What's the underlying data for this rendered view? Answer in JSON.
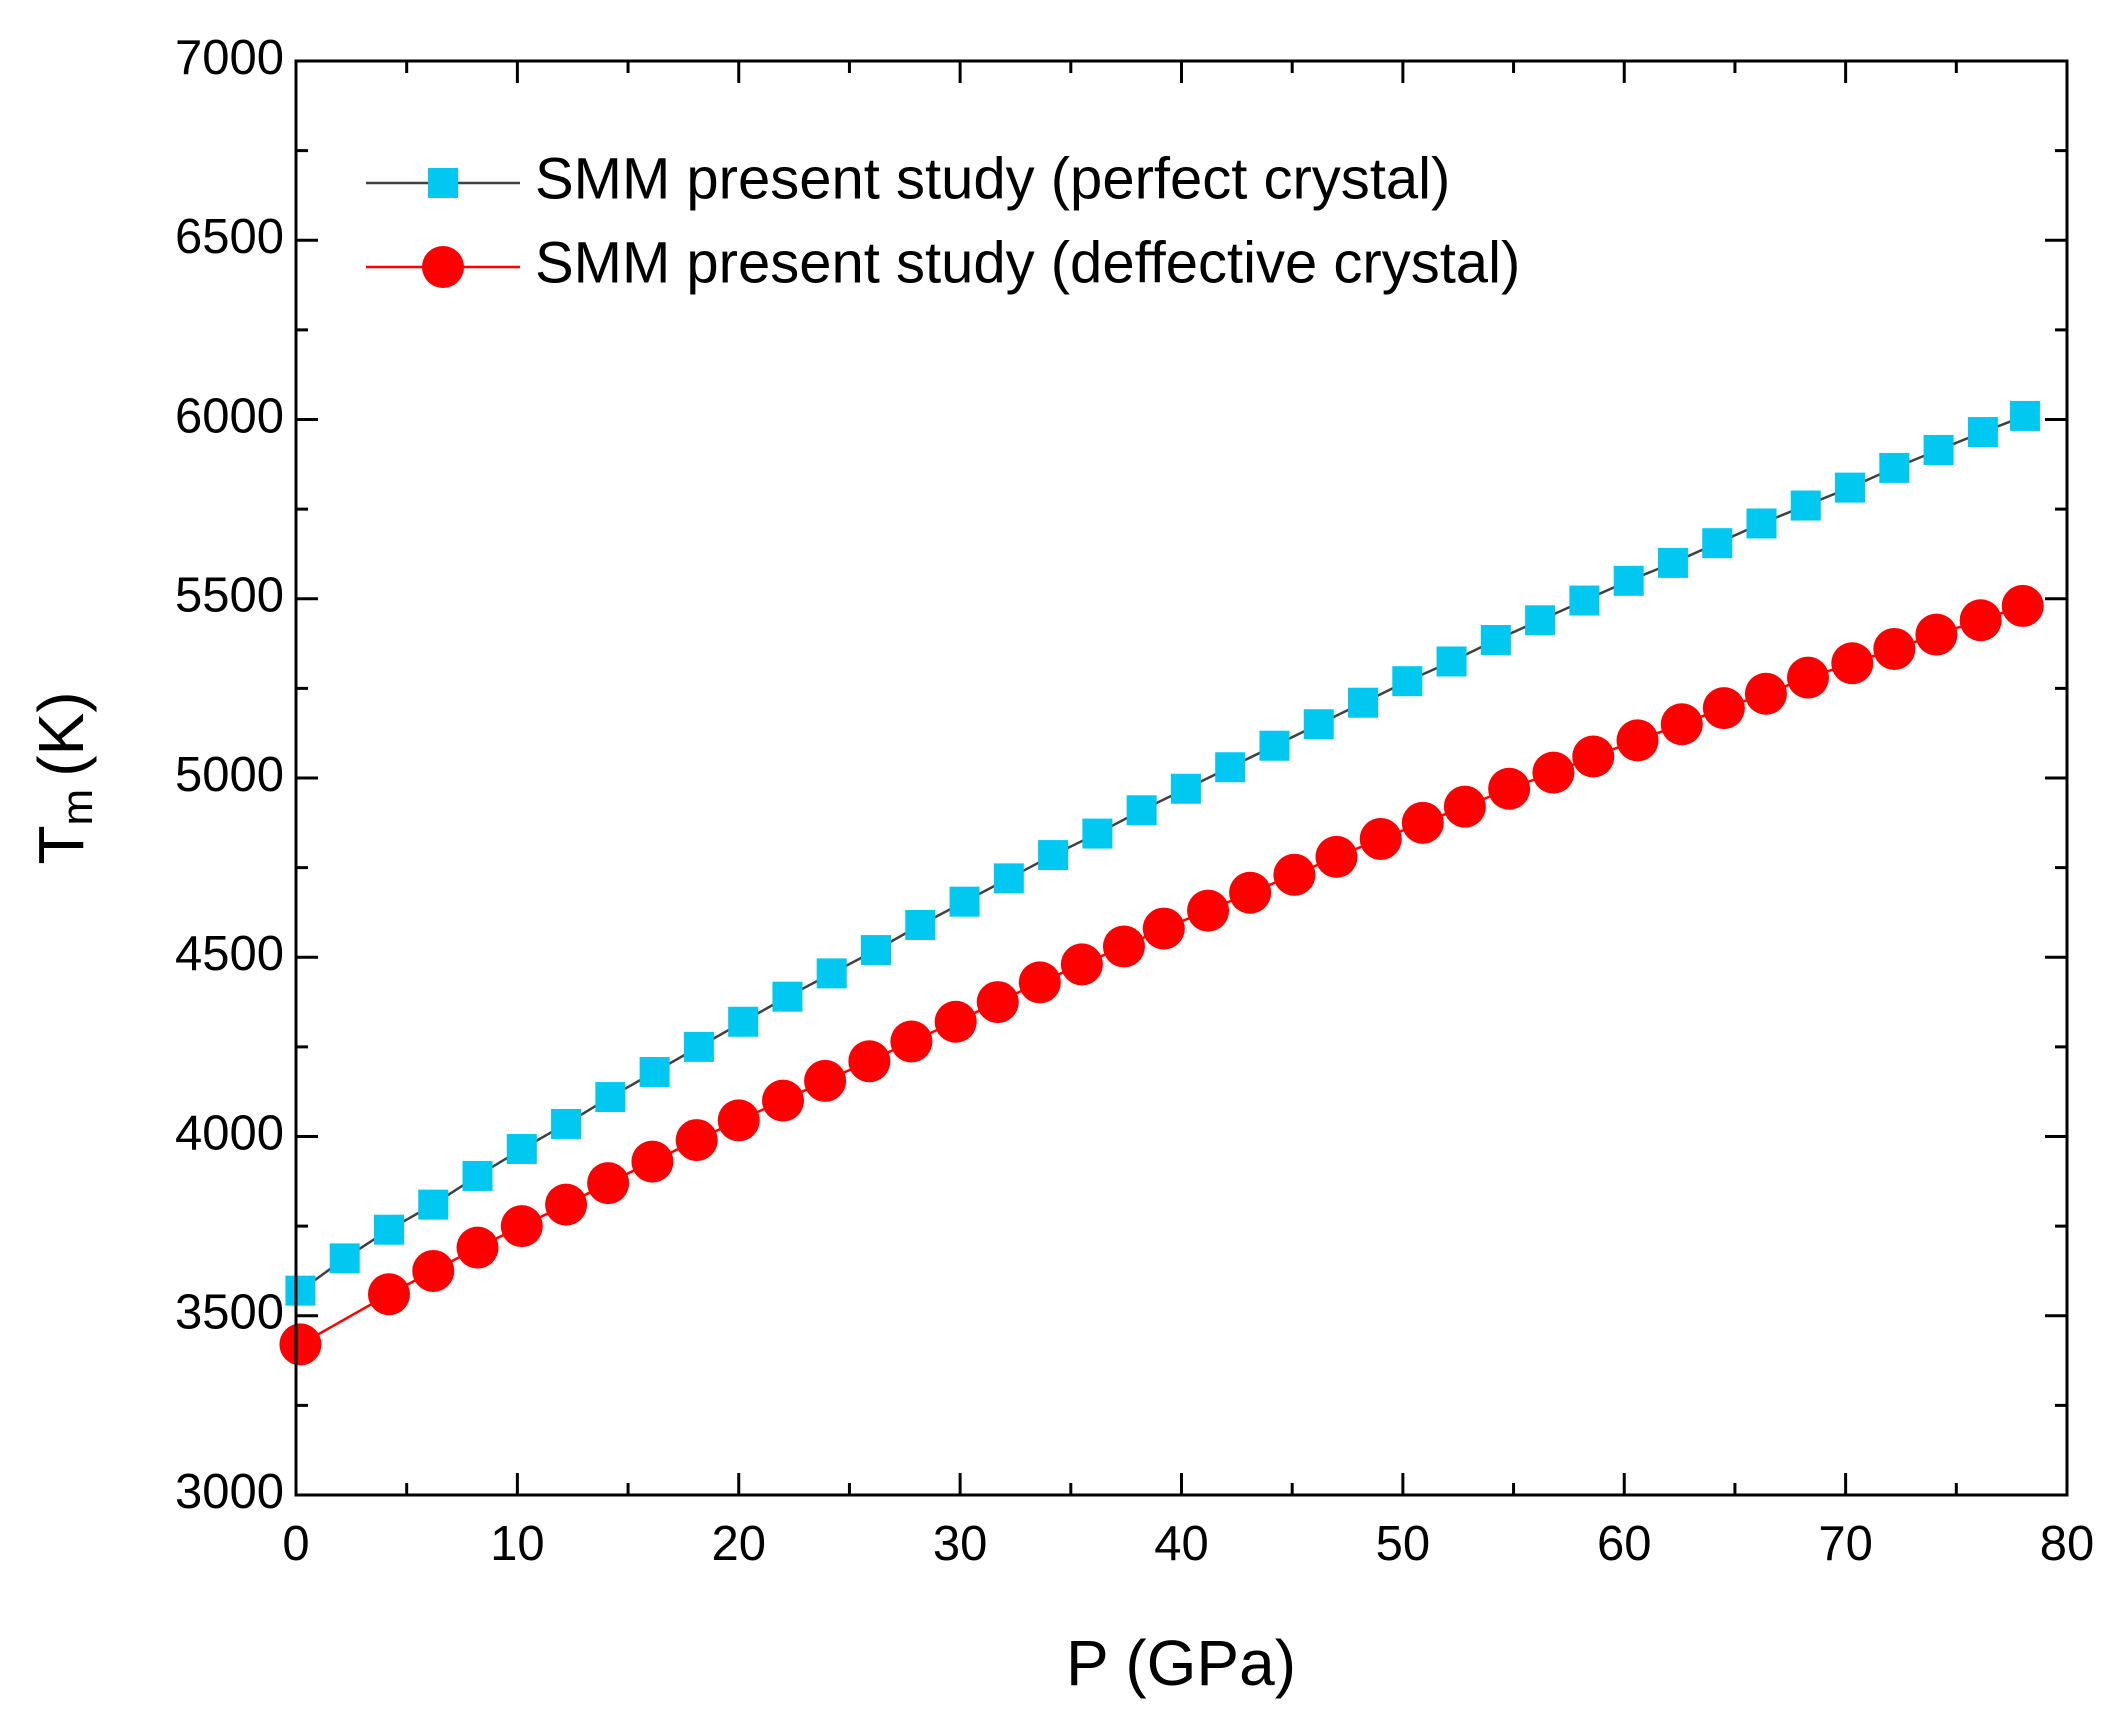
{
  "chart_data": {
    "type": "line",
    "xlabel": "P (GPa)",
    "ylabel": {
      "main": "T",
      "sub": "m",
      "unit": "(K)"
    },
    "xlim": [
      0,
      80
    ],
    "xticks": [
      0,
      10,
      20,
      30,
      40,
      50,
      60,
      70,
      80
    ],
    "ylim": [
      3000,
      7000
    ],
    "yticks": [
      3000,
      3500,
      4000,
      4500,
      5000,
      5500,
      6000,
      6500,
      7000
    ],
    "legend": "upper left",
    "series": [
      {
        "name": "SMM present study (perfect crystal)",
        "color": "#00c8f0",
        "line_color": "#404040",
        "marker": "square",
        "x": [
          0.2,
          2.2,
          4.2,
          6.2,
          8.2,
          10.2,
          12.2,
          14.2,
          16.2,
          18.2,
          20.2,
          22.2,
          24.2,
          26.2,
          28.2,
          30.2,
          32.2,
          34.2,
          36.2,
          38.2,
          40.2,
          42.2,
          44.2,
          46.2,
          48.2,
          50.2,
          52.2,
          54.2,
          56.2,
          58.2,
          60.2,
          62.2,
          64.2,
          66.2,
          68.2,
          70.2,
          72.2,
          74.2,
          76.2,
          78.1
        ],
        "values": [
          3570,
          3660,
          3740,
          3810,
          3890,
          3965,
          4035,
          4110,
          4180,
          4250,
          4320,
          4390,
          4455,
          4520,
          4590,
          4655,
          4720,
          4785,
          4845,
          4910,
          4970,
          5030,
          5090,
          5150,
          5210,
          5270,
          5325,
          5385,
          5440,
          5495,
          5550,
          5600,
          5655,
          5710,
          5760,
          5810,
          5865,
          5915,
          5965,
          6010
        ]
      },
      {
        "name": "SMM present study (deffective crystal)",
        "color": "#ff0000",
        "line_color": "#ff0000",
        "marker": "circle",
        "x": [
          0.2,
          4.2,
          6.2,
          8.2,
          10.2,
          12.2,
          14.1,
          16.1,
          18.1,
          20.0,
          22.0,
          23.9,
          25.9,
          27.8,
          29.8,
          31.7,
          33.6,
          35.5,
          37.4,
          39.2,
          41.2,
          43.1,
          45.1,
          47.0,
          49.0,
          50.9,
          52.8,
          54.8,
          56.8,
          58.6,
          60.6,
          62.6,
          64.5,
          66.4,
          68.3,
          70.3,
          72.2,
          74.1,
          76.1,
          78.0
        ],
        "values": [
          3420,
          3560,
          3625,
          3690,
          3750,
          3810,
          3870,
          3930,
          3990,
          4045,
          4100,
          4155,
          4210,
          4265,
          4320,
          4375,
          4430,
          4480,
          4530,
          4580,
          4630,
          4680,
          4730,
          4780,
          4830,
          4875,
          4920,
          4970,
          5015,
          5060,
          5105,
          5150,
          5195,
          5235,
          5280,
          5320,
          5360,
          5400,
          5440,
          5480
        ]
      }
    ]
  }
}
